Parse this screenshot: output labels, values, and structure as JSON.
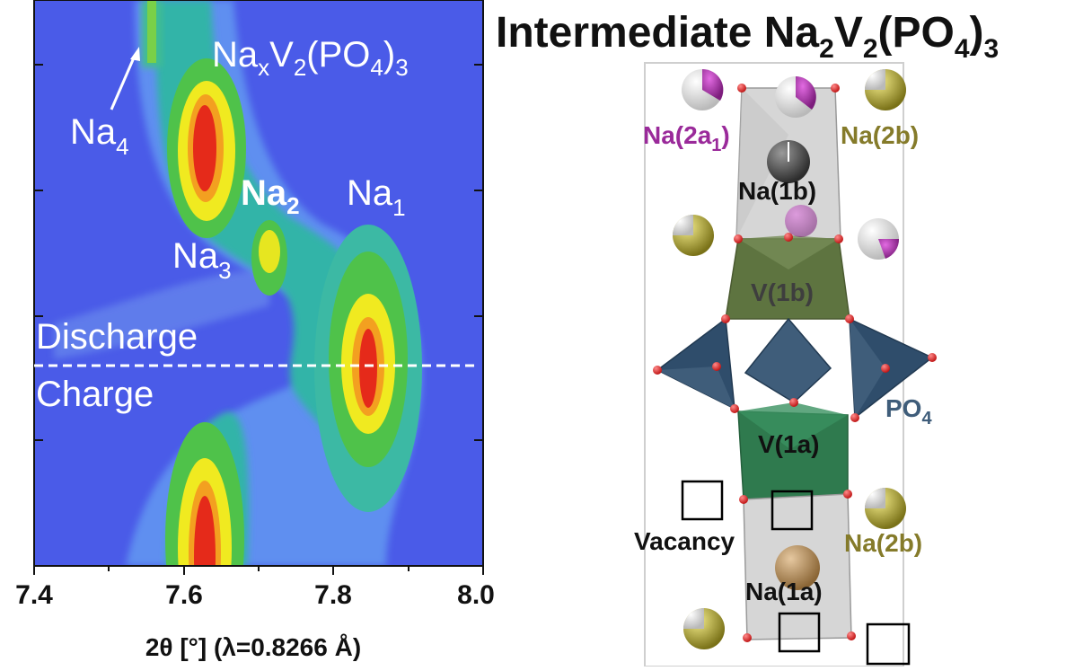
{
  "colors": {
    "background_map": "#4a5be8",
    "na2a1": "#9a2a9a",
    "na2b": "#857b2a",
    "po4": "#3f5d7a",
    "vacancy_box": "#000000"
  },
  "plot": {
    "xlabel_main": "2θ [°] (λ=0.8266 Å)",
    "xticks": [
      "7.4",
      "7.6",
      "7.8",
      "8.0"
    ],
    "xlim": [
      7.4,
      8.0
    ],
    "labels": {
      "series_base": "Na",
      "series_x": "x",
      "series_v": "V",
      "series_two": "2",
      "series_po4": "(PO",
      "series_four": "4",
      "series_close": ")",
      "series_three": "3",
      "na4": "Na",
      "na4_sub": "4",
      "na2": "Na",
      "na2_sub": "2",
      "na1": "Na",
      "na1_sub": "1",
      "na3": "Na",
      "na3_sub": "3",
      "discharge": "Discharge",
      "charge": "Charge"
    }
  },
  "structure": {
    "title_pre": "Intermediate Na",
    "title_sub1": "2",
    "title_v": "V",
    "title_sub2": "2",
    "title_po": "(PO",
    "title_sub3": "4",
    "title_close": ")",
    "title_sub4": "3",
    "sites": {
      "na2a1_pre": "Na(2a",
      "na2a1_sub": "1",
      "na2a1_post": ")",
      "na2b_top": "Na(2b)",
      "na1b": "Na(1b)",
      "v1b": "V(1b)",
      "po4_pre": "PO",
      "po4_sub": "4",
      "v1a": "V(1a)",
      "vacancy": "Vacancy",
      "na2b_bottom": "Na(2b)",
      "na1a": "Na(1a)"
    }
  }
}
